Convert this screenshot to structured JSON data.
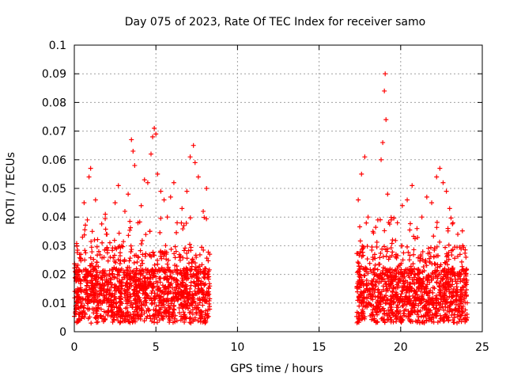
{
  "chart_data": {
    "type": "scatter",
    "title": "Day 075 of 2023, Rate Of TEC Index for receiver samo",
    "xlabel": "GPS time / hours",
    "ylabel": "ROTI / TECUs",
    "xlim": [
      0,
      25
    ],
    "ylim": [
      0,
      0.1
    ],
    "xticks": [
      0,
      5,
      10,
      15,
      20,
      25
    ],
    "xtick_labels": [
      "0",
      "5",
      "10",
      "15",
      "20",
      "25"
    ],
    "yticks": [
      0,
      0.01,
      0.02,
      0.03,
      0.04,
      0.05,
      0.06,
      0.07,
      0.08,
      0.09,
      0.1
    ],
    "ytick_labels": [
      "0",
      "0.01",
      "0.02",
      "0.03",
      "0.04",
      "0.05",
      "0.06",
      "0.07",
      "0.08",
      "0.09",
      "0.1"
    ],
    "grid": true,
    "marker": "plus",
    "color": "#ff0000",
    "series": [
      {
        "segments": [
          {
            "x_start": 0.0,
            "x_end": 8.3
          },
          {
            "x_start": 17.3,
            "x_end": 24.1
          }
        ],
        "points": [
          [
            0.05,
            0.021
          ],
          [
            0.1,
            0.008
          ],
          [
            0.2,
            0.015
          ],
          [
            0.3,
            0.012
          ],
          [
            0.4,
            0.027
          ],
          [
            0.5,
            0.033
          ],
          [
            0.6,
            0.045
          ],
          [
            0.7,
            0.018
          ],
          [
            0.8,
            0.039
          ],
          [
            0.9,
            0.054
          ],
          [
            1.0,
            0.057
          ],
          [
            1.1,
            0.035
          ],
          [
            1.2,
            0.022
          ],
          [
            1.3,
            0.046
          ],
          [
            1.5,
            0.028
          ],
          [
            1.7,
            0.031
          ],
          [
            1.9,
            0.041
          ],
          [
            2.0,
            0.034
          ],
          [
            2.2,
            0.026
          ],
          [
            2.5,
            0.045
          ],
          [
            2.7,
            0.051
          ],
          [
            2.9,
            0.03
          ],
          [
            3.1,
            0.042
          ],
          [
            3.3,
            0.048
          ],
          [
            3.5,
            0.067
          ],
          [
            3.6,
            0.063
          ],
          [
            3.7,
            0.058
          ],
          [
            3.9,
            0.038
          ],
          [
            4.1,
            0.044
          ],
          [
            4.3,
            0.053
          ],
          [
            4.5,
            0.052
          ],
          [
            4.7,
            0.062
          ],
          [
            4.8,
            0.068
          ],
          [
            4.9,
            0.071
          ],
          [
            5.0,
            0.069
          ],
          [
            5.1,
            0.055
          ],
          [
            5.3,
            0.049
          ],
          [
            5.5,
            0.046
          ],
          [
            5.7,
            0.04
          ],
          [
            5.9,
            0.047
          ],
          [
            6.1,
            0.052
          ],
          [
            6.3,
            0.038
          ],
          [
            6.6,
            0.043
          ],
          [
            6.9,
            0.049
          ],
          [
            7.1,
            0.061
          ],
          [
            7.3,
            0.065
          ],
          [
            7.4,
            0.059
          ],
          [
            7.6,
            0.054
          ],
          [
            7.9,
            0.042
          ],
          [
            8.1,
            0.05
          ],
          [
            17.4,
            0.046
          ],
          [
            17.6,
            0.055
          ],
          [
            17.8,
            0.061
          ],
          [
            18.0,
            0.04
          ],
          [
            18.3,
            0.035
          ],
          [
            18.6,
            0.039
          ],
          [
            18.8,
            0.06
          ],
          [
            18.9,
            0.066
          ],
          [
            19.0,
            0.084
          ],
          [
            19.05,
            0.09
          ],
          [
            19.1,
            0.074
          ],
          [
            19.2,
            0.048
          ],
          [
            19.5,
            0.032
          ],
          [
            19.8,
            0.038
          ],
          [
            20.1,
            0.044
          ],
          [
            20.4,
            0.046
          ],
          [
            20.7,
            0.051
          ],
          [
            21.0,
            0.036
          ],
          [
            21.3,
            0.04
          ],
          [
            21.6,
            0.047
          ],
          [
            21.9,
            0.045
          ],
          [
            22.2,
            0.054
          ],
          [
            22.4,
            0.057
          ],
          [
            22.6,
            0.052
          ],
          [
            22.8,
            0.049
          ],
          [
            23.0,
            0.043
          ],
          [
            23.2,
            0.038
          ],
          [
            23.5,
            0.034
          ],
          [
            23.8,
            0.03
          ],
          [
            24.0,
            0.026
          ]
        ]
      }
    ]
  }
}
